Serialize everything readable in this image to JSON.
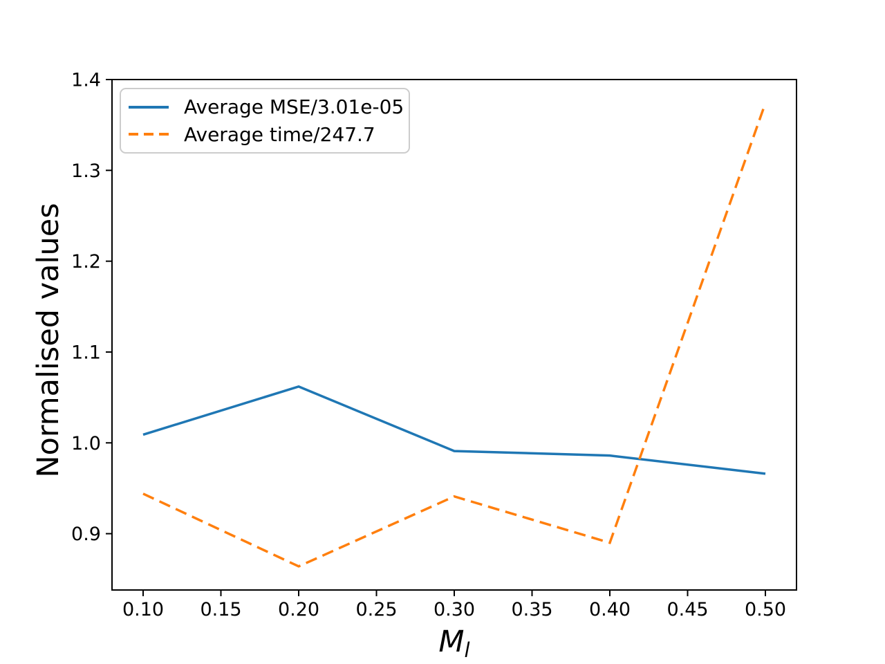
{
  "figure": {
    "background": "#ffffff"
  },
  "labels": {
    "xlabel_base": "M",
    "xlabel_sub": "l"
  },
  "chart_data": {
    "type": "line",
    "title": "",
    "xlabel": "M_l",
    "ylabel": "Normalised values",
    "x": [
      0.1,
      0.2,
      0.3,
      0.4,
      0.5
    ],
    "series": [
      {
        "name": "Average MSE/3.01e-05",
        "color": "#1f77b4",
        "line_style": "solid",
        "values": [
          1.009,
          1.062,
          0.991,
          0.986,
          0.966
        ]
      },
      {
        "name": "Average time/247.7",
        "color": "#ff7f0e",
        "line_style": "dashed",
        "values": [
          0.944,
          0.864,
          0.941,
          0.89,
          1.374
        ]
      }
    ],
    "xlim": [
      0.08,
      0.52
    ],
    "ylim": [
      0.838,
      1.4
    ],
    "xticks": [
      0.1,
      0.15,
      0.2,
      0.25,
      0.3,
      0.35,
      0.4,
      0.45,
      0.5
    ],
    "xtick_labels": [
      "0.10",
      "0.15",
      "0.20",
      "0.25",
      "0.30",
      "0.35",
      "0.40",
      "0.45",
      "0.50"
    ],
    "yticks": [
      0.9,
      1.0,
      1.1,
      1.2,
      1.3,
      1.4
    ],
    "ytick_labels": [
      "0.9",
      "1.0",
      "1.1",
      "1.2",
      "1.3",
      "1.4"
    ],
    "grid": false,
    "legend_position": "upper left",
    "axis_color": "#000000"
  }
}
